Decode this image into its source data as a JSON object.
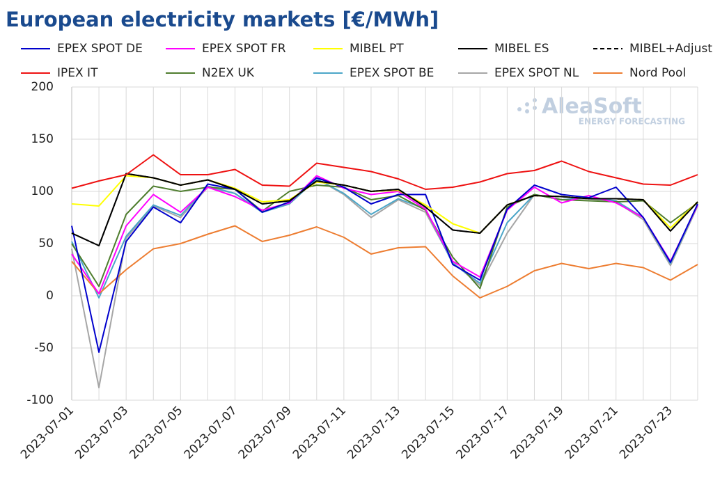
{
  "chart_data": {
    "type": "line",
    "title": "European electricity markets [€/MWh]",
    "watermark": {
      "brand": "AleaSoft",
      "tagline": "ENERGY FORECASTING"
    },
    "categories": [
      "2023-07-01",
      null,
      "2023-07-03",
      null,
      "2023-07-05",
      null,
      "2023-07-07",
      null,
      "2023-07-09",
      null,
      "2023-07-11",
      null,
      "2023-07-13",
      null,
      "2023-07-15",
      null,
      "2023-07-17",
      null,
      "2023-07-19",
      null,
      "2023-07-21",
      null,
      "2023-07-23",
      null
    ],
    "ylim": [
      -100,
      200
    ],
    "yticks": [
      -100,
      -50,
      0,
      50,
      100,
      150,
      200
    ],
    "grid": true,
    "series": [
      {
        "name": "EPEX SPOT DE",
        "color": "#0000cc",
        "values": [
          67,
          -54,
          52,
          85,
          70,
          107,
          102,
          80,
          90,
          113,
          104,
          88,
          97,
          97,
          30,
          15,
          83,
          106,
          97,
          94,
          104,
          75,
          32,
          88
        ]
      },
      {
        "name": "EPEX SPOT FR",
        "color": "#ff00ff",
        "values": [
          40,
          2,
          67,
          97,
          80,
          104,
          95,
          82,
          89,
          115,
          103,
          97,
          100,
          83,
          33,
          18,
          82,
          104,
          89,
          96,
          89,
          75,
          33,
          87
        ]
      },
      {
        "name": "MIBEL PT",
        "color": "#ffff00",
        "values": [
          88,
          86,
          115,
          113,
          106,
          111,
          103,
          90,
          92,
          109,
          106,
          100,
          101,
          87,
          69,
          60,
          87,
          96,
          95,
          93,
          93,
          92,
          65,
          90
        ]
      },
      {
        "name": "MIBEL ES",
        "color": "#000000",
        "values": [
          60,
          48,
          117,
          113,
          106,
          111,
          102,
          88,
          91,
          110,
          106,
          100,
          102,
          85,
          63,
          60,
          87,
          96,
          95,
          93,
          93,
          92,
          62,
          90
        ]
      },
      {
        "name": "MIBEL+Adjust.",
        "color": "#000000",
        "dashed": true,
        "values": [
          60,
          48,
          117,
          113,
          106,
          111,
          102,
          88,
          91,
          110,
          106,
          100,
          102,
          85,
          63,
          60,
          87,
          96,
          95,
          93,
          93,
          92,
          62,
          90
        ]
      },
      {
        "name": "IPEX IT",
        "color": "#ee1111",
        "values": [
          103,
          110,
          116,
          135,
          116,
          116,
          121,
          106,
          105,
          127,
          123,
          119,
          112,
          102,
          104,
          109,
          117,
          120,
          129,
          119,
          113,
          107,
          106,
          116
        ]
      },
      {
        "name": "N2EX UK",
        "color": "#4e7d2e",
        "values": [
          50,
          9,
          78,
          105,
          100,
          104,
          102,
          81,
          100,
          106,
          104,
          92,
          96,
          82,
          37,
          7,
          85,
          97,
          92,
          91,
          90,
          91,
          70,
          89
        ]
      },
      {
        "name": "EPEX SPOT BE",
        "color": "#4ba6c8",
        "values": [
          52,
          -2,
          57,
          87,
          77,
          105,
          98,
          80,
          88,
          112,
          98,
          78,
          93,
          83,
          31,
          12,
          70,
          97,
          92,
          94,
          91,
          75,
          31,
          87
        ]
      },
      {
        "name": "EPEX SPOT NL",
        "color": "#a6a6a6",
        "values": [
          45,
          -88,
          55,
          86,
          75,
          104,
          98,
          80,
          89,
          112,
          97,
          75,
          92,
          80,
          32,
          10,
          60,
          97,
          92,
          93,
          90,
          73,
          29,
          86
        ]
      },
      {
        "name": "Nord Pool",
        "color": "#ed7d31",
        "values": [
          33,
          2,
          25,
          45,
          50,
          59,
          67,
          52,
          58,
          66,
          56,
          40,
          46,
          47,
          19,
          -2,
          9,
          24,
          31,
          26,
          31,
          27,
          15,
          30
        ]
      }
    ]
  }
}
